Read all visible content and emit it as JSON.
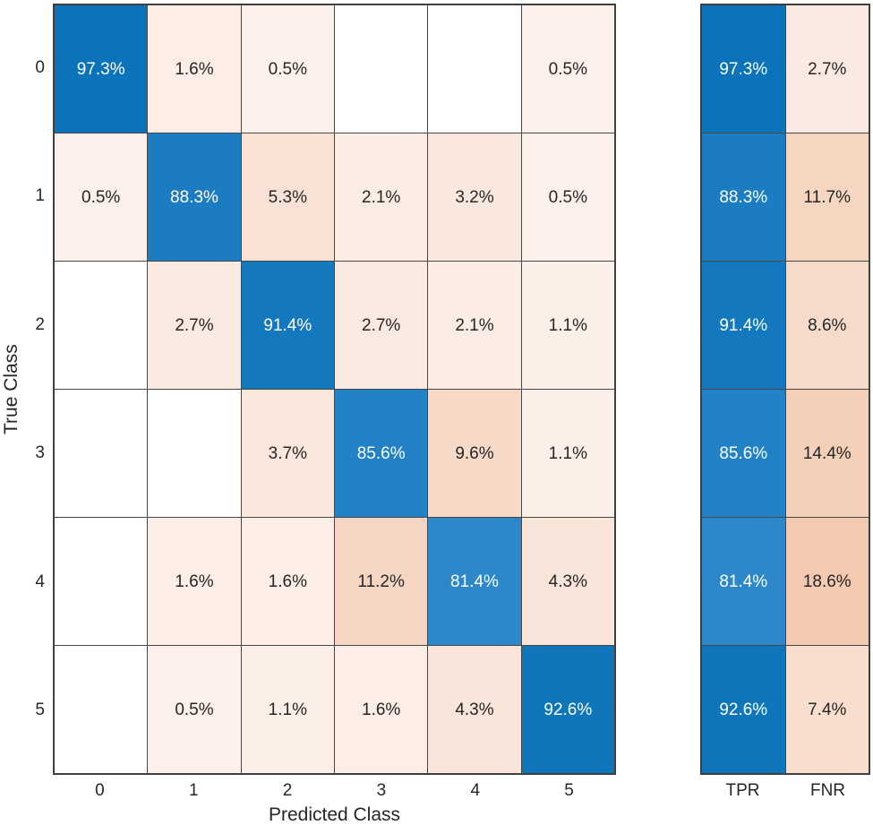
{
  "chart_data": {
    "type": "heatmap",
    "subtype": "confusion-matrix",
    "title": "",
    "xlabel": "Predicted Class",
    "ylabel": "True Class",
    "x_categories": [
      "0",
      "1",
      "2",
      "3",
      "4",
      "5"
    ],
    "y_categories": [
      "0",
      "1",
      "2",
      "3",
      "4",
      "5"
    ],
    "value_unit": "%",
    "matrix_percent": [
      [
        97.3,
        1.6,
        0.5,
        null,
        null,
        0.5
      ],
      [
        0.5,
        88.3,
        5.3,
        2.1,
        3.2,
        0.5
      ],
      [
        null,
        2.7,
        91.4,
        2.7,
        2.1,
        1.1
      ],
      [
        null,
        null,
        3.7,
        85.6,
        9.6,
        1.1
      ],
      [
        null,
        1.6,
        1.6,
        11.2,
        81.4,
        4.3
      ],
      [
        null,
        0.5,
        1.1,
        1.6,
        4.3,
        92.6
      ]
    ],
    "summary": {
      "columns": [
        "TPR",
        "FNR"
      ],
      "TPR": [
        97.3,
        88.3,
        91.4,
        85.6,
        81.4,
        92.6
      ],
      "FNR": [
        2.7,
        11.7,
        8.6,
        14.4,
        18.6,
        7.4
      ]
    },
    "legend_position": "none",
    "grid_lines": true,
    "colors": {
      "grid_line": "#474747",
      "empty_cell": "#ffffff",
      "text_dark": "#262626",
      "text_on_blue": "#ffffff",
      "diagonal_blue_max": "#0b73ba",
      "diagonal_blue_min": "#2e87c9",
      "offdiagonal_pink_max": "#f3c9b0"
    },
    "cell_colors": {
      "97.3": "#0b73ba",
      "92.6": "#1076bc",
      "91.4": "#1378be",
      "88.3": "#1c7cc2",
      "85.6": "#2381c5",
      "81.4": "#2e87c9",
      "0.5": "#fdf0ea",
      "1.1": "#fcefe8",
      "1.6": "#fcede6",
      "2.1": "#fbece4",
      "2.7": "#fbeae1",
      "3.2": "#fae8de",
      "3.7": "#fae7dc",
      "4.3": "#f9e5d9",
      "5.3": "#f9e2d5",
      "7.4": "#f8decf",
      "8.6": "#f7dbca",
      "9.6": "#f7d9c7",
      "11.2": "#f6d6c2",
      "11.7": "#f6d5c1",
      "14.4": "#f4d0b9",
      "18.6": "#f3c9b0"
    }
  }
}
